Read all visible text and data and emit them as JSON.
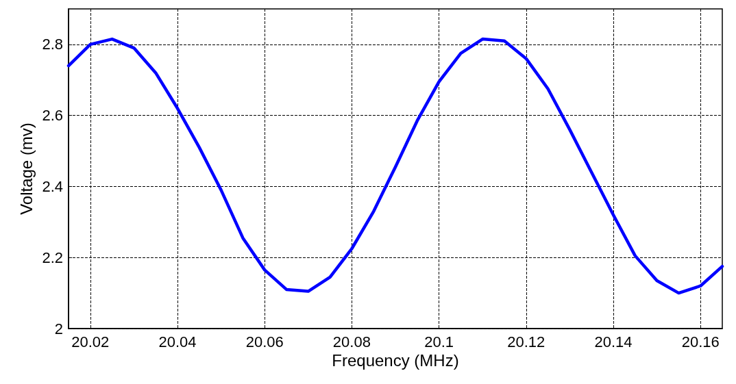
{
  "chart_data": {
    "type": "line",
    "xlabel": "Frequency (MHz)",
    "ylabel": "Voltage (mv)",
    "x": [
      20.015,
      20.02,
      20.025,
      20.03,
      20.035,
      20.04,
      20.045,
      20.05,
      20.055,
      20.06,
      20.065,
      20.07,
      20.075,
      20.08,
      20.085,
      20.09,
      20.095,
      20.1,
      20.105,
      20.11,
      20.115,
      20.12,
      20.125,
      20.13,
      20.135,
      20.14,
      20.145,
      20.15,
      20.155,
      20.16,
      20.165
    ],
    "series": [
      {
        "color": "#0000ff",
        "values": [
          2.74,
          2.8,
          2.815,
          2.79,
          2.72,
          2.62,
          2.51,
          2.39,
          2.255,
          2.165,
          2.11,
          2.105,
          2.145,
          2.225,
          2.33,
          2.455,
          2.585,
          2.695,
          2.775,
          2.815,
          2.81,
          2.76,
          2.675,
          2.56,
          2.44,
          2.32,
          2.205,
          2.135,
          2.1,
          2.12,
          2.175
        ]
      }
    ],
    "xlim": [
      20.015,
      20.165
    ],
    "xticks": [
      20.02,
      20.04,
      20.06,
      20.08,
      {
        "value": 20.1,
        "label": "20.1"
      },
      20.12,
      20.14,
      20.16
    ],
    "ylim": [
      2,
      2.9
    ],
    "yticks": [
      2,
      2.2,
      2.4,
      2.6,
      2.8
    ],
    "grid": true,
    "marker": "none",
    "line_style": "solid"
  }
}
